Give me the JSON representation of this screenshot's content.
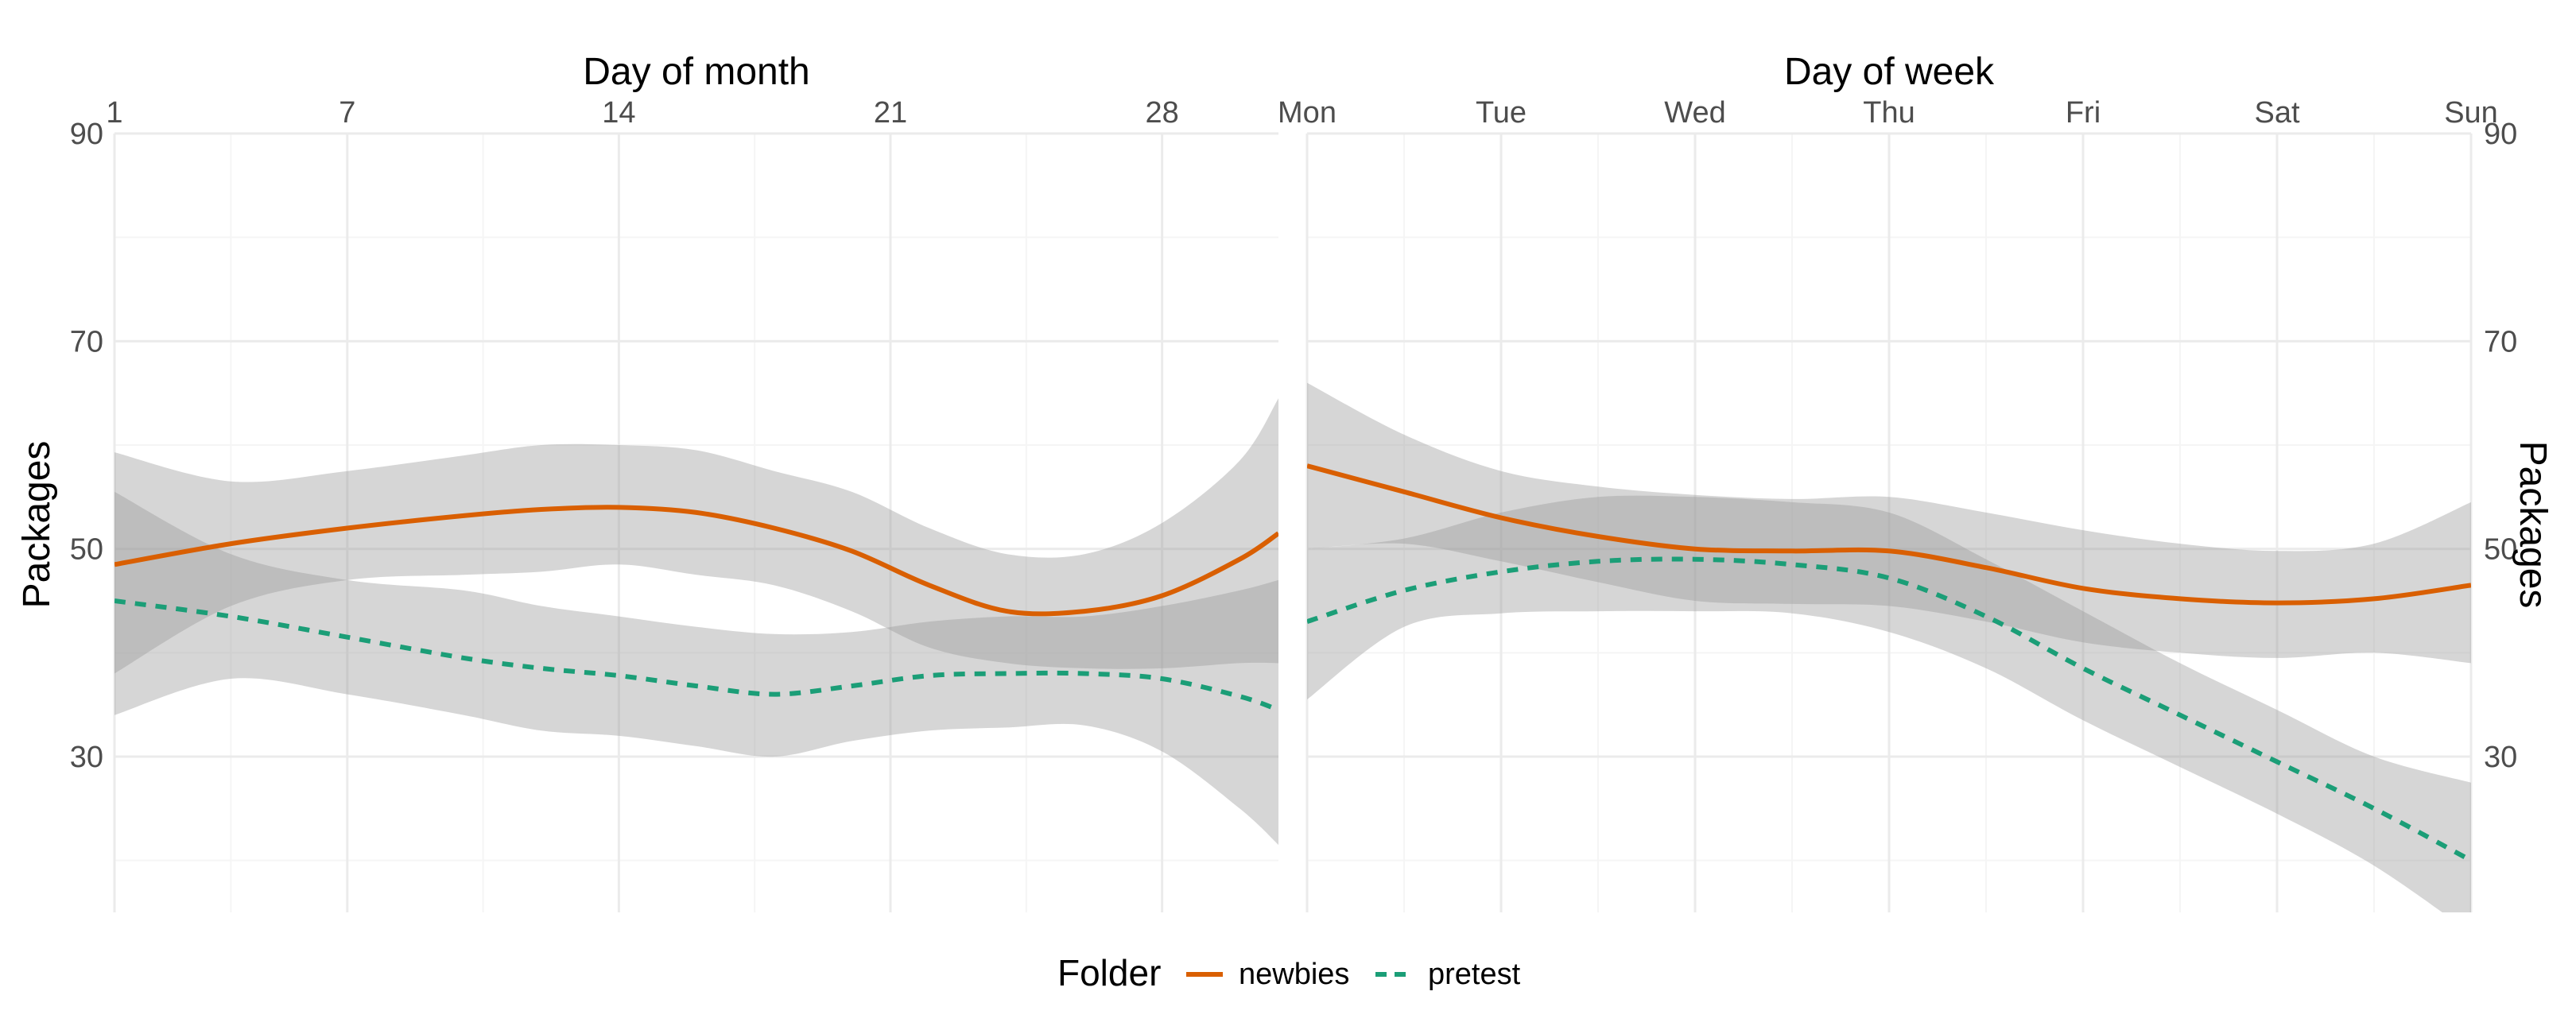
{
  "chart_data": {
    "type": "line",
    "y_scale": {
      "label": "Packages",
      "range": [
        15,
        90
      ],
      "major_ticks": [
        30,
        50,
        70,
        90
      ],
      "minor_ticks": [
        20,
        40,
        60,
        80
      ]
    },
    "panels": [
      {
        "id": "day-of-month",
        "title": "Day of month",
        "x_range": [
          1,
          31
        ],
        "x_ticks": [
          1,
          7,
          14,
          21,
          28
        ],
        "x_minor": [
          4,
          10.5,
          17.5,
          24.5
        ],
        "series": [
          {
            "name": "newbies",
            "x": [
              1,
              4,
              7,
              10,
              12,
              14,
              16,
              18,
              20,
              22,
              24,
              26,
              28,
              30,
              31
            ],
            "y": [
              48.5,
              50.5,
              52,
              53.2,
              53.8,
              54,
              53.5,
              52,
              49.8,
              46.5,
              44,
              44,
              45.5,
              49,
              51.5
            ],
            "lower": [
              38,
              44.5,
              47,
              47.5,
              47.8,
              48.5,
              47.5,
              46.5,
              44,
              40.5,
              39,
              38.5,
              38.5,
              39,
              39
            ],
            "upper": [
              59.3,
              56.5,
              57.5,
              59,
              60,
              60,
              59.5,
              57.5,
              55.5,
              52,
              49.5,
              49.5,
              52.5,
              58.5,
              64.5
            ]
          },
          {
            "name": "pretest",
            "x": [
              1,
              4,
              7,
              10,
              12,
              14,
              16,
              18,
              20,
              22,
              24,
              26,
              28,
              30,
              31
            ],
            "y": [
              45,
              43.5,
              41.5,
              39.5,
              38.5,
              37.8,
              36.8,
              36,
              36.8,
              37.8,
              38,
              38,
              37.5,
              35.8,
              34.5
            ],
            "lower": [
              34,
              37.5,
              36,
              34,
              32.5,
              32,
              31,
              30,
              31.5,
              32.5,
              32.8,
              33,
              30.5,
              25,
              21.5
            ],
            "upper": [
              55.5,
              49.5,
              47,
              46,
              44.5,
              43.5,
              42.5,
              41.8,
              42,
              43,
              43.5,
              43.5,
              44.5,
              46,
              47
            ]
          }
        ]
      },
      {
        "id": "day-of-week",
        "title": "Day of week",
        "x_range": [
          1,
          7
        ],
        "x_ticks": [
          1,
          2,
          3,
          4,
          5,
          6,
          7
        ],
        "x_tick_labels": [
          "Mon",
          "Tue",
          "Wed",
          "Thu",
          "Fri",
          "Sat",
          "Sun"
        ],
        "x_minor": [
          1.5,
          2.5,
          3.5,
          4.5,
          5.5,
          6.5
        ],
        "series": [
          {
            "name": "newbies",
            "x": [
              1,
              1.5,
              2,
              2.5,
              3,
              3.5,
              4,
              4.5,
              5,
              5.5,
              6,
              6.5,
              7
            ],
            "y": [
              58,
              55.5,
              53,
              51.2,
              50,
              49.8,
              49.8,
              48.2,
              46.2,
              45.2,
              44.8,
              45.2,
              46.5
            ],
            "lower": [
              50,
              50.5,
              48.8,
              46.8,
              45,
              44.7,
              44.5,
              43,
              41,
              40,
              39.5,
              40,
              39
            ],
            "upper": [
              66,
              61,
              57.5,
              56,
              55.2,
              54.8,
              55,
              53.5,
              51.8,
              50.5,
              49.8,
              50.5,
              54.5
            ]
          },
          {
            "name": "pretest",
            "x": [
              1,
              1.5,
              2,
              2.5,
              3,
              3.5,
              4,
              4.5,
              5,
              5.5,
              6,
              6.5,
              7
            ],
            "y": [
              43,
              46,
              47.8,
              48.8,
              49,
              48.5,
              47.2,
              43.5,
              38.5,
              34,
              29.5,
              25,
              20
            ],
            "lower": [
              35.5,
              42.5,
              43.8,
              44,
              44,
              43.8,
              42,
              38.5,
              33.5,
              29,
              24.5,
              19.5,
              13
            ],
            "upper": [
              50,
              51,
              53.5,
              55,
              55,
              54.5,
              53.5,
              49,
              44,
              39,
              34.5,
              30,
              27.5
            ]
          }
        ]
      }
    ],
    "legend": {
      "title": "Folder",
      "position": "bottom",
      "entries": [
        {
          "name": "newbies",
          "color": "#D95F02",
          "linetype": "solid"
        },
        {
          "name": "pretest",
          "color": "#1B9E77",
          "linetype": "dashed"
        }
      ]
    },
    "colors": {
      "newbies": "#D95F02",
      "pretest": "#1B9E77",
      "ribbon": "#999999",
      "grid_major": "#EBEBEB",
      "grid_minor": "#F5F5F5"
    }
  }
}
